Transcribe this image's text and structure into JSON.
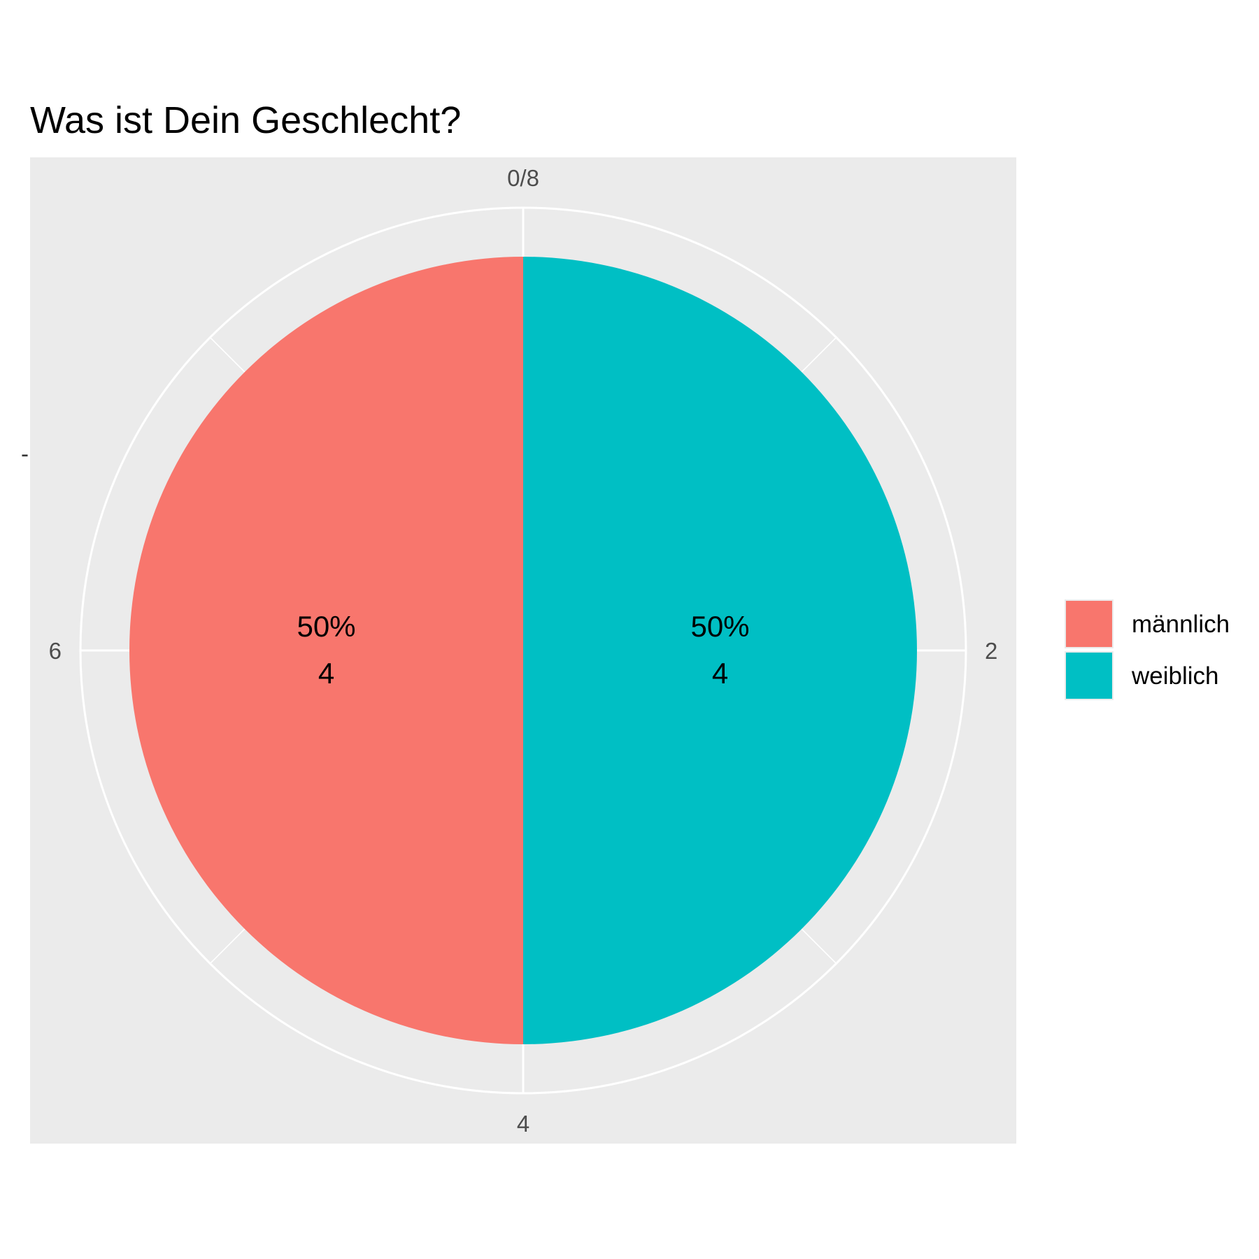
{
  "chart_data": {
    "type": "pie",
    "title": "Was ist Dein Geschlecht?",
    "xlabel": "",
    "ylabel": "",
    "total": 8,
    "angular_ticks": [
      {
        "value": 0,
        "label": "0/8"
      },
      {
        "value": 2,
        "label": "2"
      },
      {
        "value": 4,
        "label": "4"
      },
      {
        "value": 6,
        "label": "6"
      }
    ],
    "y_tick_mark": "-",
    "slices": [
      {
        "name": "weiblich",
        "value": 4,
        "percent_label": "50%",
        "count_label": "4",
        "color": "#00BFC4"
      },
      {
        "name": "männlich",
        "value": 4,
        "percent_label": "50%",
        "count_label": "4",
        "color": "#F8766D"
      }
    ],
    "legend": {
      "position": "right",
      "entries": [
        {
          "label": "männlich",
          "color": "#F8766D"
        },
        {
          "label": "weiblich",
          "color": "#00BFC4"
        }
      ]
    },
    "panel_color": "#EBEBEB",
    "grid_color": "#FFFFFF",
    "grid": true
  }
}
